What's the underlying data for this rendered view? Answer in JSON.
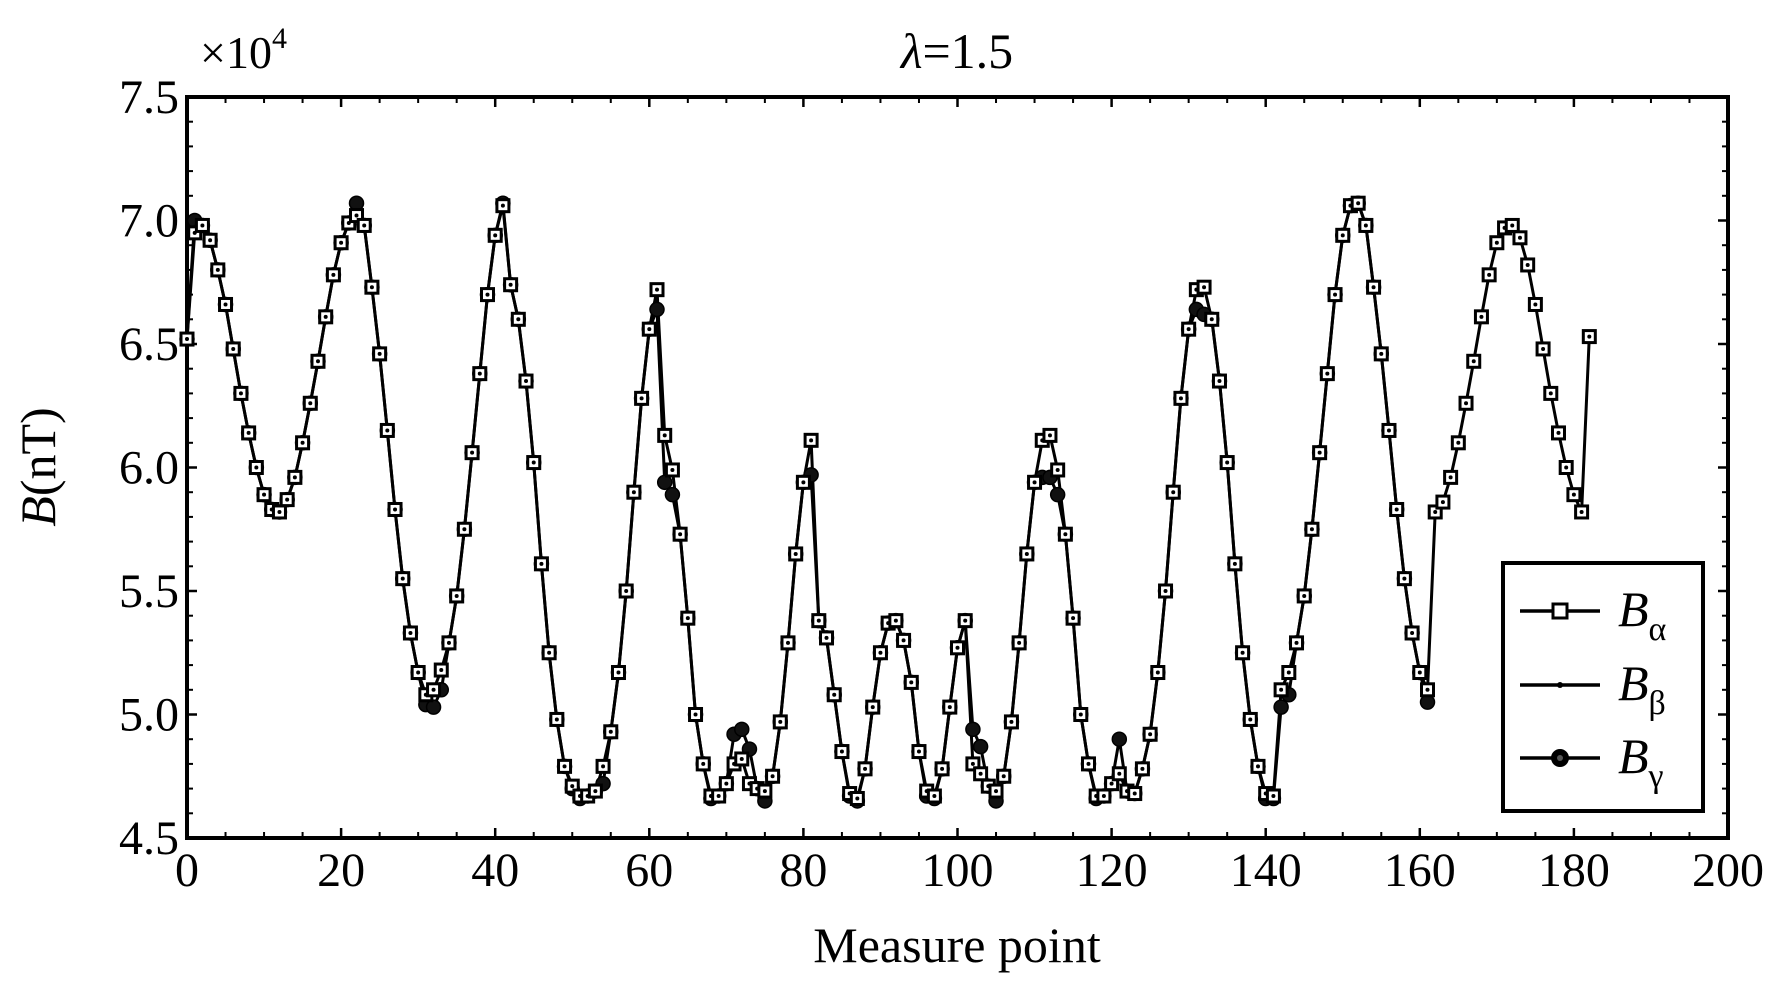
{
  "chart_data": {
    "type": "line",
    "title": "λ=1.5",
    "title_parts": {
      "symbol": "λ",
      "value": "=1.5"
    },
    "xlabel": "Measure point",
    "ylabel": "B(nT)",
    "ylabel_parts": {
      "symbol": "B",
      "unit": "(nT)"
    },
    "y_scale_label": "×10⁴",
    "y_scale_parts": {
      "prefix": "×10",
      "exponent": "4"
    },
    "xlim": [
      0,
      200
    ],
    "ylim": [
      4.5,
      7.5
    ],
    "x_ticks": [
      0,
      20,
      40,
      60,
      80,
      100,
      120,
      140,
      160,
      180,
      200
    ],
    "x_tick_labels": [
      "0",
      "20",
      "40",
      "60",
      "80",
      "100",
      "120",
      "140",
      "160",
      "180",
      "200"
    ],
    "y_ticks": [
      4.5,
      5.0,
      5.5,
      6.0,
      6.5,
      7.0,
      7.5
    ],
    "y_tick_labels": [
      "4.5",
      "5.0",
      "5.5",
      "6.0",
      "6.5",
      "7.0",
      "7.5"
    ],
    "grid": false,
    "legend_position": "bottom-right",
    "series": [
      {
        "name": "Bα",
        "name_parts": {
          "base": "B",
          "sub": "α"
        },
        "marker": "square",
        "x": [
          0,
          1,
          2,
          3,
          4,
          5,
          6,
          7,
          8,
          9,
          10,
          11,
          12,
          13,
          14,
          15,
          16,
          17,
          18,
          19,
          20,
          21,
          22,
          23,
          24,
          25,
          26,
          27,
          28,
          29,
          30,
          31,
          32,
          33,
          34,
          35,
          36,
          37,
          38,
          39,
          40,
          41,
          42,
          43,
          44,
          45,
          46,
          47,
          48,
          49,
          50,
          51,
          52,
          53,
          54,
          55,
          56,
          57,
          58,
          59,
          60,
          61,
          62,
          63,
          64,
          65,
          66,
          67,
          68,
          69,
          70,
          71,
          72,
          73,
          74,
          75,
          76,
          77,
          78,
          79,
          80,
          81,
          82,
          83,
          84,
          85,
          86,
          87,
          88,
          89,
          90,
          91,
          92,
          93,
          94,
          95,
          96,
          97,
          98,
          99,
          100,
          101,
          102,
          103,
          104,
          105,
          106,
          107,
          108,
          109,
          110,
          111,
          112,
          113,
          114,
          115,
          116,
          117,
          118,
          119,
          120,
          121,
          122,
          123,
          124,
          125,
          126,
          127,
          128,
          129,
          130,
          131,
          132,
          133,
          134,
          135,
          136,
          137,
          138,
          139,
          140,
          141,
          142,
          143,
          144,
          145,
          146,
          147,
          148,
          149,
          150,
          151,
          152,
          153,
          154,
          155,
          156,
          157,
          158,
          159,
          160,
          161,
          162,
          163,
          164,
          165,
          166,
          167,
          168,
          169,
          170,
          171,
          172,
          173,
          174,
          175,
          176,
          177,
          178,
          179,
          180,
          181,
          182
        ],
        "y": [
          6.52,
          6.95,
          6.98,
          6.92,
          6.8,
          6.66,
          6.48,
          6.3,
          6.14,
          6.0,
          5.89,
          5.83,
          5.82,
          5.87,
          5.96,
          6.1,
          6.26,
          6.43,
          6.61,
          6.78,
          6.91,
          6.99,
          7.02,
          6.98,
          6.73,
          6.46,
          6.15,
          5.83,
          5.55,
          5.33,
          5.17,
          5.08,
          5.1,
          5.18,
          5.29,
          5.48,
          5.75,
          6.06,
          6.38,
          6.7,
          6.94,
          7.06,
          6.74,
          6.6,
          6.35,
          6.02,
          5.61,
          5.25,
          4.98,
          4.79,
          4.71,
          4.67,
          4.67,
          4.69,
          4.79,
          4.93,
          5.17,
          5.5,
          5.9,
          6.28,
          6.56,
          6.72,
          6.13,
          5.99,
          5.73,
          5.39,
          5.0,
          4.8,
          4.67,
          4.67,
          4.72,
          4.8,
          4.82,
          4.72,
          4.7,
          4.69,
          4.75,
          4.97,
          5.29,
          5.65,
          5.94,
          6.11,
          5.38,
          5.31,
          5.08,
          4.85,
          4.68,
          4.66,
          4.78,
          5.03,
          5.25,
          5.37,
          5.38,
          5.3,
          5.13,
          4.85,
          4.69,
          4.67,
          4.78,
          5.03,
          5.27,
          5.38,
          4.8,
          4.76,
          4.71,
          4.69,
          4.75,
          4.97,
          5.29,
          5.65,
          5.94,
          6.11,
          6.13,
          5.99,
          5.73,
          5.39,
          5.0,
          4.8,
          4.67,
          4.67,
          4.72,
          4.76,
          4.69,
          4.68,
          4.78,
          4.92,
          5.17,
          5.5,
          5.9,
          6.28,
          6.56,
          6.72,
          6.73,
          6.6,
          6.35,
          6.02,
          5.61,
          5.25,
          4.98,
          4.79,
          4.68,
          4.67,
          5.1,
          5.17,
          5.29,
          5.48,
          5.75,
          6.06,
          6.38,
          6.7,
          6.94,
          7.06,
          7.07,
          6.98,
          6.73,
          6.46,
          6.15,
          5.83,
          5.55,
          5.33,
          5.17,
          5.1,
          5.82,
          5.86,
          5.96,
          6.1,
          6.26,
          6.43,
          6.61,
          6.78,
          6.91,
          6.97,
          6.98,
          6.93,
          6.82,
          6.66,
          6.48,
          6.3,
          6.14,
          6.0,
          5.89,
          5.82,
          6.53
        ]
      },
      {
        "name": "Bβ",
        "name_parts": {
          "base": "B",
          "sub": "β"
        },
        "marker": "point",
        "same_as": "Bα"
      },
      {
        "name": "Bγ",
        "name_parts": {
          "base": "B",
          "sub": "γ"
        },
        "marker": "circle",
        "x": [
          0,
          1,
          2,
          3,
          4,
          5,
          6,
          7,
          8,
          9,
          10,
          11,
          12,
          13,
          14,
          15,
          16,
          17,
          18,
          19,
          20,
          21,
          22,
          23,
          24,
          25,
          26,
          27,
          28,
          29,
          30,
          31,
          32,
          33,
          34,
          35,
          36,
          37,
          38,
          39,
          40,
          41,
          42,
          43,
          44,
          45,
          46,
          47,
          48,
          49,
          50,
          51,
          52,
          53,
          54,
          55,
          56,
          57,
          58,
          59,
          60,
          61,
          62,
          63,
          64,
          65,
          66,
          67,
          68,
          69,
          70,
          71,
          72,
          73,
          74,
          75,
          76,
          77,
          78,
          79,
          80,
          81,
          82,
          83,
          84,
          85,
          86,
          87,
          88,
          89,
          90,
          91,
          92,
          93,
          94,
          95,
          96,
          97,
          98,
          99,
          100,
          101,
          102,
          103,
          104,
          105,
          106,
          107,
          108,
          109,
          110,
          111,
          112,
          113,
          114,
          115,
          116,
          117,
          118,
          119,
          120,
          121,
          122,
          123,
          124,
          125,
          126,
          127,
          128,
          129,
          130,
          131,
          132,
          133,
          134,
          135,
          136,
          137,
          138,
          139,
          140,
          141,
          142,
          143,
          144,
          145,
          146,
          147,
          148,
          149,
          150,
          151,
          152,
          153,
          154,
          155,
          156,
          157,
          158,
          159,
          160,
          161
        ],
        "y": [
          6.52,
          7.0,
          6.98,
          6.92,
          6.8,
          6.66,
          6.48,
          6.3,
          6.14,
          6.0,
          5.89,
          5.83,
          5.82,
          5.87,
          5.96,
          6.1,
          6.26,
          6.43,
          6.61,
          6.78,
          6.91,
          6.99,
          7.07,
          6.98,
          6.73,
          6.46,
          6.15,
          5.83,
          5.55,
          5.33,
          5.17,
          5.04,
          5.03,
          5.1,
          5.29,
          5.48,
          5.75,
          6.06,
          6.38,
          6.7,
          6.94,
          7.07,
          6.74,
          6.6,
          6.35,
          6.02,
          5.61,
          5.25,
          4.98,
          4.79,
          4.7,
          4.66,
          4.67,
          4.69,
          4.72,
          4.93,
          5.17,
          5.5,
          5.9,
          6.28,
          6.56,
          6.64,
          5.94,
          5.89,
          5.73,
          5.39,
          5.0,
          4.8,
          4.66,
          4.67,
          4.72,
          4.92,
          4.94,
          4.86,
          4.7,
          4.65,
          4.75,
          4.97,
          5.29,
          5.65,
          5.94,
          5.97,
          5.38,
          5.31,
          5.08,
          4.85,
          4.67,
          4.65,
          4.78,
          5.03,
          5.25,
          5.37,
          5.38,
          5.3,
          5.13,
          4.85,
          4.67,
          4.66,
          4.78,
          5.03,
          5.27,
          5.38,
          4.94,
          4.87,
          4.71,
          4.65,
          4.75,
          4.97,
          5.29,
          5.65,
          5.94,
          5.96,
          5.96,
          5.89,
          5.73,
          5.39,
          5.0,
          4.8,
          4.66,
          4.67,
          4.72,
          4.9,
          4.69,
          4.68,
          4.78,
          4.92,
          5.17,
          5.5,
          5.9,
          6.28,
          6.56,
          6.64,
          6.62,
          6.6,
          6.35,
          6.02,
          5.61,
          5.25,
          4.98,
          4.79,
          4.66,
          4.66,
          5.03,
          5.08,
          5.29,
          5.48,
          5.75,
          6.06,
          6.38,
          6.7,
          6.94,
          7.06,
          7.07,
          6.98,
          6.73,
          6.46,
          6.15,
          5.83,
          5.55,
          5.33,
          5.17,
          5.05
        ]
      }
    ]
  }
}
